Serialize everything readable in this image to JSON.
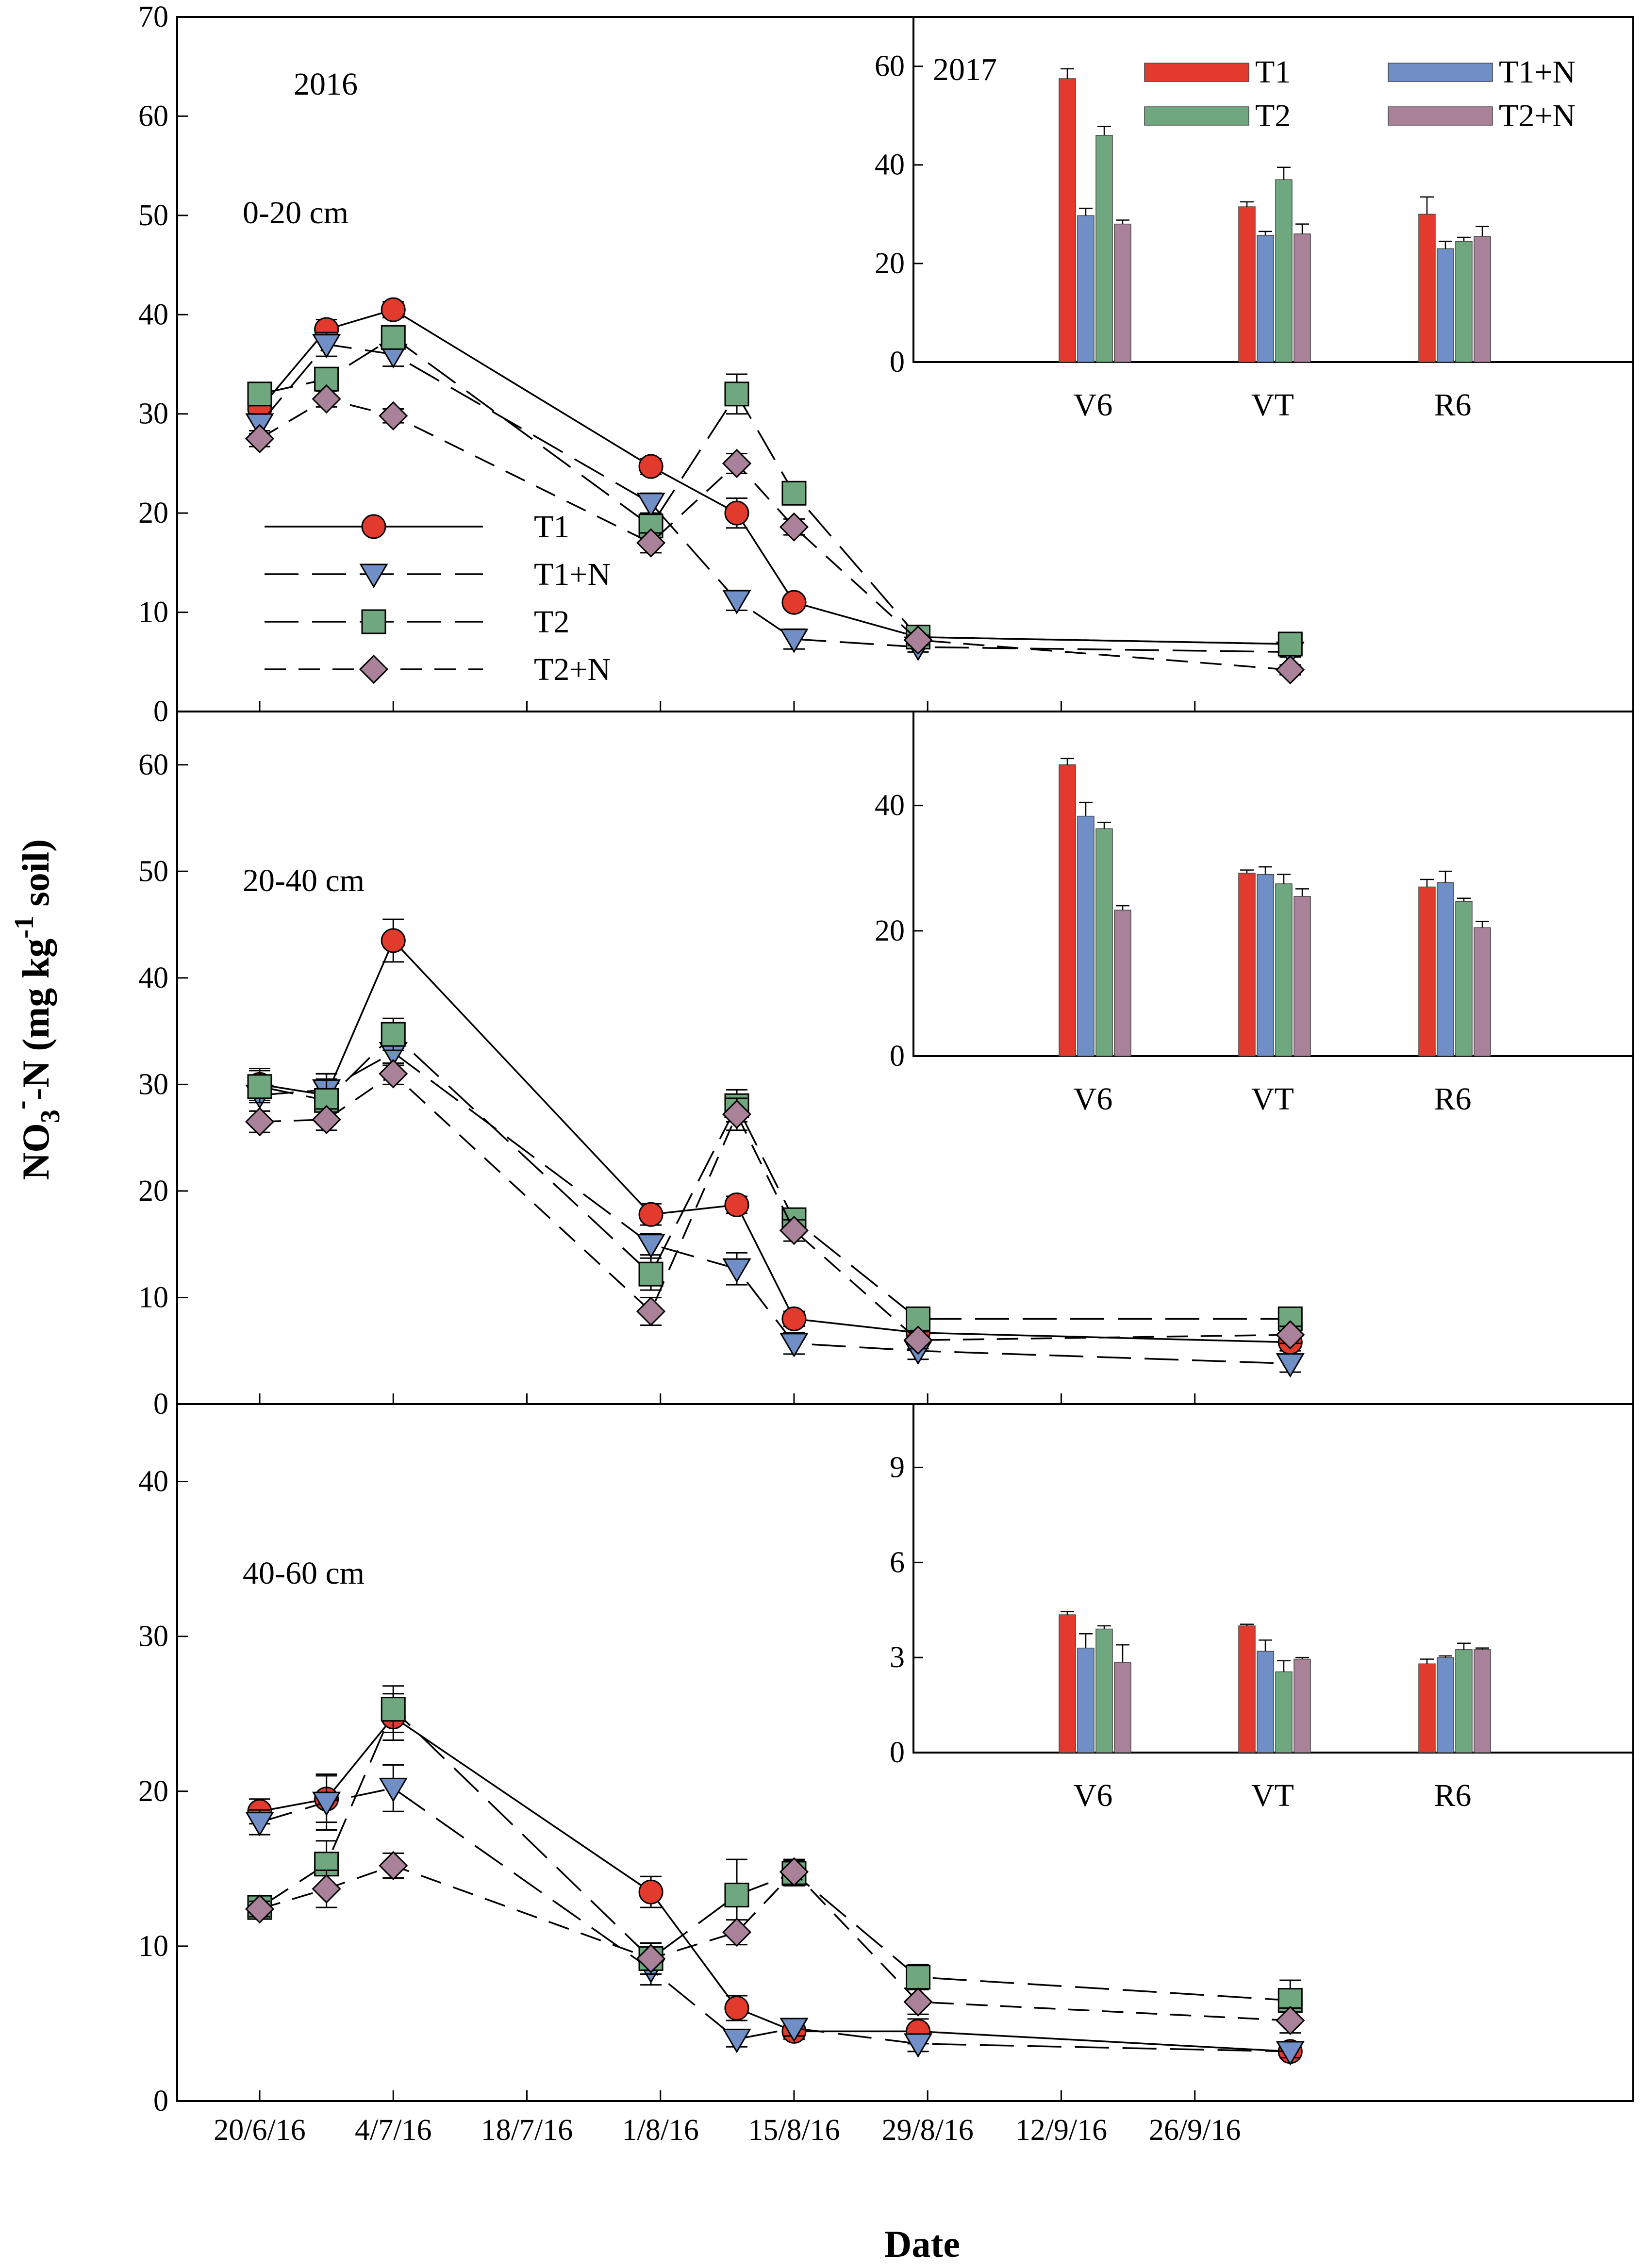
{
  "chart_data": {
    "type": "line",
    "ylabel": "NO3⁻-N (mg kg⁻¹ soil)",
    "ylabel_parts": {
      "main": "NO",
      "sub3": "3",
      "sup1": "-",
      "mid": "-N (mg kg",
      "sup2": "-1",
      "end": " soil)"
    },
    "xlabel": "Date",
    "x_ticks": [
      "20/6/16",
      "4/7/16",
      "18/7/16",
      "1/8/16",
      "15/8/16",
      "29/8/16",
      "12/9/16",
      "26/9/16"
    ],
    "x_tick_days": [
      0,
      14,
      28,
      42,
      56,
      70,
      84,
      98
    ],
    "sample_days": [
      0,
      7,
      14,
      41,
      50,
      56,
      69,
      108
    ],
    "legend": [
      {
        "name": "T1",
        "marker": "circle",
        "dash": "solid",
        "color": "#e23b2e"
      },
      {
        "name": "T1+N",
        "marker": "triangle-down",
        "dash": "long",
        "color": "#6f8fc6"
      },
      {
        "name": "T2",
        "marker": "square",
        "dash": "long",
        "color": "#6fa77f"
      },
      {
        "name": "T2+N",
        "marker": "diamond",
        "dash": "medium",
        "color": "#a98198"
      }
    ],
    "panels": [
      {
        "year": "2016",
        "depth": "0-20 cm",
        "ylim": [
          0,
          70
        ],
        "yticks": [
          0,
          10,
          20,
          30,
          40,
          50,
          60,
          70
        ],
        "series": [
          {
            "name": "T1",
            "values": [
              30.5,
              38.5,
              40.5,
              24.7,
              20.0,
              11.0,
              7.5,
              6.8
            ],
            "err": [
              1.0,
              1.0,
              0.8,
              0.8,
              1.5,
              0.6,
              0.5,
              0.5
            ]
          },
          {
            "name": "T1+N",
            "values": [
              29.0,
              37.0,
              36.0,
              21.0,
              11.2,
              7.3,
              6.5,
              6.0
            ],
            "err": [
              1.0,
              1.2,
              1.2,
              1.0,
              1.0,
              1.0,
              0.5,
              0.5
            ]
          },
          {
            "name": "T2",
            "values": [
              32.0,
              33.5,
              37.7,
              18.7,
              32.0,
              22.0,
              7.5,
              6.8
            ],
            "err": [
              1.0,
              1.0,
              1.0,
              1.0,
              2.0,
              1.0,
              0.5,
              0.5
            ]
          },
          {
            "name": "T2+N",
            "values": [
              27.5,
              31.5,
              29.8,
              17.0,
              25.0,
              18.6,
              7.2,
              4.2
            ],
            "err": [
              0.8,
              0.8,
              0.7,
              1.0,
              1.0,
              0.8,
              0.5,
              0.5
            ]
          }
        ],
        "inset": {
          "year_label": "2017",
          "categories": [
            "V6",
            "VT",
            "R6"
          ],
          "ylim": [
            0,
            70
          ],
          "yticks": [
            0,
            20,
            40,
            60
          ],
          "series": [
            {
              "name": "T1",
              "values": [
                57.5,
                31.5,
                30.0
              ],
              "err": [
                2.0,
                1.0,
                3.5
              ]
            },
            {
              "name": "T1+N",
              "values": [
                29.7,
                25.7,
                23.0
              ],
              "err": [
                1.5,
                0.8,
                1.5
              ]
            },
            {
              "name": "T2",
              "values": [
                46.0,
                37.0,
                24.5
              ],
              "err": [
                1.8,
                2.5,
                0.8
              ]
            },
            {
              "name": "T2+N",
              "values": [
                28.0,
                26.0,
                25.5
              ],
              "err": [
                0.8,
                2.0,
                2.0
              ]
            }
          ]
        }
      },
      {
        "year": "",
        "depth": "20-40 cm",
        "ylim": [
          0,
          65
        ],
        "yticks": [
          0,
          10,
          20,
          30,
          40,
          50,
          60
        ],
        "series": [
          {
            "name": "T1",
            "values": [
              30.0,
              29.0,
              43.5,
              17.8,
              18.7,
              8.0,
              6.7,
              5.8
            ],
            "err": [
              1.5,
              2.0,
              2.0,
              1.0,
              0.8,
              0.7,
              0.8,
              0.8
            ]
          },
          {
            "name": "T1+N",
            "values": [
              29.0,
              29.5,
              33.0,
              15.0,
              12.7,
              5.7,
              5.0,
              3.8
            ],
            "err": [
              1.5,
              1.5,
              1.2,
              1.0,
              1.5,
              1.0,
              0.8,
              0.8
            ]
          },
          {
            "name": "T2",
            "values": [
              29.8,
              28.5,
              34.7,
              12.2,
              28.0,
              17.3,
              8.0,
              8.0
            ],
            "err": [
              1.5,
              2.0,
              1.5,
              1.5,
              1.5,
              1.0,
              0.8,
              0.8
            ]
          },
          {
            "name": "T2+N",
            "values": [
              26.5,
              26.7,
              31.0,
              8.7,
              27.2,
              16.3,
              6.0,
              6.5
            ],
            "err": [
              1.0,
              1.0,
              1.0,
              1.3,
              1.5,
              1.0,
              0.8,
              0.8
            ]
          }
        ],
        "inset": {
          "year_label": "",
          "categories": [
            "V6",
            "VT",
            "R6"
          ],
          "ylim": [
            0,
            55
          ],
          "yticks": [
            0,
            20,
            40
          ],
          "series": [
            {
              "name": "T1",
              "values": [
                46.5,
                29.2,
                27.0
              ],
              "err": [
                1.0,
                0.5,
                1.2
              ]
            },
            {
              "name": "T1+N",
              "values": [
                38.3,
                29.0,
                27.7
              ],
              "err": [
                2.2,
                1.2,
                1.8
              ]
            },
            {
              "name": "T2",
              "values": [
                36.3,
                27.5,
                24.7
              ],
              "err": [
                1.0,
                1.5,
                0.5
              ]
            },
            {
              "name": "T2+N",
              "values": [
                23.3,
                25.5,
                20.5
              ],
              "err": [
                0.7,
                1.2,
                1.0
              ]
            }
          ]
        }
      },
      {
        "year": "",
        "depth": "40-60 cm",
        "ylim": [
          0,
          45
        ],
        "yticks": [
          0,
          10,
          20,
          30,
          40
        ],
        "series": [
          {
            "name": "T1",
            "values": [
              18.7,
              19.5,
              24.8,
              13.5,
              6.0,
              4.5,
              4.5,
              3.2
            ],
            "err": [
              0.8,
              1.5,
              1.5,
              1.0,
              0.8,
              0.5,
              0.8,
              0.4
            ]
          },
          {
            "name": "T1+N",
            "values": [
              18.0,
              19.3,
              20.2,
              8.5,
              4.0,
              4.7,
              3.7,
              3.2
            ],
            "err": [
              0.8,
              1.8,
              1.5,
              1.0,
              0.5,
              0.5,
              0.5,
              0.4
            ]
          },
          {
            "name": "T2",
            "values": [
              12.5,
              15.3,
              25.3,
              9.2,
              13.3,
              14.7,
              8.0,
              6.5
            ],
            "err": [
              0.5,
              1.5,
              1.5,
              1.0,
              2.3,
              0.8,
              0.8,
              1.3
            ]
          },
          {
            "name": "T2+N",
            "values": [
              12.4,
              13.7,
              15.2,
              9.2,
              10.9,
              14.8,
              6.4,
              5.2
            ],
            "err": [
              0.5,
              1.2,
              0.8,
              1.0,
              0.8,
              0.8,
              0.8,
              0.8
            ]
          }
        ],
        "inset": {
          "year_label": "",
          "categories": [
            "V6",
            "VT",
            "R6"
          ],
          "ylim": [
            0,
            11
          ],
          "yticks": [
            0,
            3,
            6,
            9
          ],
          "series": [
            {
              "name": "T1",
              "values": [
                4.35,
                4.0,
                2.8
              ],
              "err": [
                0.1,
                0.05,
                0.15
              ]
            },
            {
              "name": "T1+N",
              "values": [
                3.3,
                3.2,
                3.0
              ],
              "err": [
                0.45,
                0.35,
                0.05
              ]
            },
            {
              "name": "T2",
              "values": [
                3.9,
                2.55,
                3.25
              ],
              "err": [
                0.1,
                0.35,
                0.2
              ]
            },
            {
              "name": "T2+N",
              "values": [
                2.85,
                2.95,
                3.25
              ],
              "err": [
                0.55,
                0.05,
                0.05
              ]
            }
          ]
        }
      }
    ]
  }
}
